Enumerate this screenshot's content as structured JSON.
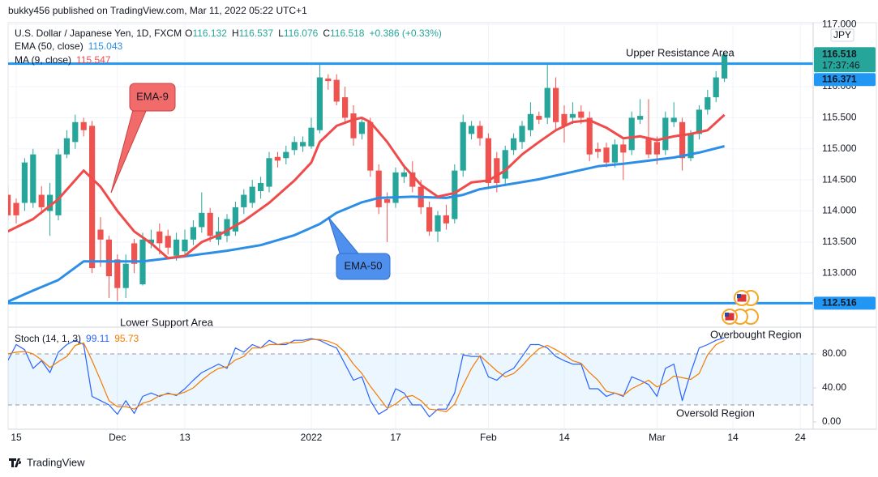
{
  "header": {
    "author_line": "bukky456 published on TradingView.com, Mar 11, 2022 05:22 UTC+1",
    "brand": "TradingView"
  },
  "chart_data": [
    {
      "type": "candlestick",
      "title": "U.S. Dollar / Japanese Yen, 1D, FXCM",
      "ohlc_prefixes": [
        "O",
        "H",
        "L",
        "C"
      ],
      "change": "+0.386 (+0.33%)",
      "currency": "JPY",
      "countdown": "17:37:46",
      "xlim": [
        0,
        95.5
      ],
      "xticks": [
        {
          "value": 1,
          "label": "15"
        },
        {
          "value": 13,
          "label": "Dec"
        },
        {
          "value": 21,
          "label": "13"
        },
        {
          "value": 36,
          "label": "2022"
        },
        {
          "value": 46,
          "label": "17"
        },
        {
          "value": 57,
          "label": "Feb"
        },
        {
          "value": 66,
          "label": "14"
        },
        {
          "value": 77,
          "label": "Mar"
        },
        {
          "value": 86,
          "label": "14"
        },
        {
          "value": 94,
          "label": "24"
        }
      ],
      "ylim": [
        112.13,
        117.03
      ],
      "yticks": [
        {
          "value": 113,
          "label": "113.000"
        },
        {
          "value": 113.5,
          "label": "113.500"
        },
        {
          "value": 114,
          "label": "114.000"
        },
        {
          "value": 114.5,
          "label": "114.500"
        },
        {
          "value": 115,
          "label": "115.000"
        },
        {
          "value": 115.5,
          "label": "115.500"
        },
        {
          "value": 116,
          "label": "116.000"
        },
        {
          "value": 117,
          "label": "117.000"
        }
      ],
      "grid": true,
      "candles": {
        "up_color": "#26a69a",
        "down_color": "#ef5350",
        "open": [
          114.26,
          114.13,
          114.13,
          114.13,
          114.26,
          114.0,
          113.93,
          114.91,
          115.11,
          115.43,
          115.37,
          113.7,
          113.54,
          113.22,
          112.76,
          113.48,
          112.82,
          113.48,
          113.67,
          113.6,
          113.28,
          113.35,
          113.54,
          113.74,
          113.97,
          113.54,
          113.6,
          113.67,
          114.06,
          114.13,
          114.32,
          114.39,
          114.87,
          114.85,
          114.98,
          115.04,
          115.04,
          115.3,
          116.13,
          116.11,
          115.83,
          115.57,
          115.24,
          115.43,
          114.65,
          114.19,
          114.13,
          114.55,
          114.62,
          114.39,
          114.06,
          113.67,
          113.93,
          113.87,
          114.65,
          115.24,
          115.37,
          115.17,
          114.85,
          114.52,
          114.98,
          115.11,
          115.3,
          115.53,
          115.5,
          115.98,
          115.56,
          115.5,
          115.6,
          115.5,
          115.0,
          115.02,
          114.78,
          115.07,
          114.98,
          115.47,
          115.17,
          115.11,
          114.98,
          115.43,
          115.43,
          114.85,
          115.24,
          115.63,
          115.83,
          116.132
        ],
        "high": [
          114.4,
          114.2,
          114.85,
          115.0,
          114.4,
          114.45,
          115.0,
          115.3,
          115.55,
          115.5,
          115.45,
          113.9,
          113.6,
          113.3,
          113.3,
          113.55,
          113.65,
          113.7,
          113.8,
          113.7,
          113.65,
          113.7,
          113.85,
          114.3,
          114.05,
          113.9,
          113.95,
          114.15,
          114.35,
          114.5,
          114.55,
          114.95,
          114.95,
          115.05,
          115.2,
          115.2,
          115.5,
          116.35,
          116.2,
          116.2,
          116.0,
          115.7,
          115.5,
          115.5,
          114.75,
          114.3,
          114.7,
          114.75,
          114.8,
          114.5,
          114.15,
          114.0,
          114.1,
          114.75,
          115.55,
          115.45,
          115.45,
          115.25,
          114.95,
          115.05,
          115.25,
          115.45,
          115.75,
          115.6,
          116.35,
          116.15,
          115.7,
          115.75,
          115.7,
          115.6,
          115.1,
          115.1,
          115.15,
          115.15,
          115.6,
          115.8,
          115.8,
          115.2,
          115.6,
          115.75,
          115.5,
          115.3,
          115.7,
          115.95,
          116.25,
          116.537
        ],
        "low": [
          113.85,
          113.8,
          114.0,
          114.05,
          113.95,
          113.6,
          113.85,
          114.85,
          115.0,
          115.2,
          113.0,
          113.1,
          112.6,
          112.55,
          112.6,
          113.0,
          112.8,
          113.4,
          113.3,
          113.3,
          113.2,
          113.25,
          113.45,
          113.65,
          113.5,
          113.45,
          113.5,
          113.6,
          113.95,
          114.05,
          114.2,
          114.3,
          114.7,
          114.75,
          114.9,
          114.95,
          115.0,
          115.25,
          115.95,
          115.7,
          115.4,
          115.05,
          115.15,
          114.55,
          113.95,
          113.5,
          114.05,
          114.45,
          114.3,
          113.95,
          113.6,
          113.5,
          113.7,
          113.8,
          114.55,
          115.15,
          115.05,
          114.35,
          114.3,
          114.4,
          114.9,
          115.0,
          115.2,
          115.4,
          115.4,
          115.3,
          115.1,
          115.4,
          115.4,
          114.8,
          114.85,
          114.7,
          114.7,
          114.5,
          114.9,
          115.4,
          114.85,
          114.75,
          114.9,
          115.35,
          114.65,
          114.8,
          115.15,
          115.55,
          115.75,
          116.076
        ],
        "close": [
          113.93,
          113.93,
          114.78,
          114.91,
          114.06,
          114.26,
          114.91,
          115.17,
          115.43,
          115.3,
          113.08,
          113.54,
          112.95,
          112.76,
          113.15,
          113.15,
          113.54,
          113.54,
          113.48,
          113.41,
          113.54,
          113.54,
          113.74,
          113.97,
          113.6,
          113.67,
          113.87,
          114.06,
          114.26,
          114.39,
          114.45,
          114.85,
          114.81,
          114.95,
          115.11,
          115.11,
          115.34,
          116.15,
          116.09,
          115.76,
          115.5,
          115.17,
          115.43,
          114.65,
          114.06,
          114.13,
          114.62,
          114.62,
          114.39,
          114.06,
          113.67,
          113.93,
          113.8,
          114.65,
          115.43,
          115.37,
          115.17,
          114.45,
          114.45,
          114.98,
          115.17,
          115.37,
          115.56,
          115.47,
          115.98,
          115.43,
          115.37,
          115.56,
          115.5,
          114.91,
          114.95,
          114.78,
          115.07,
          114.94,
          115.5,
          115.53,
          114.91,
          114.91,
          115.5,
          115.5,
          114.85,
          115.24,
          115.63,
          115.83,
          116.15,
          116.518
        ]
      },
      "series": [
        {
          "name": "EMA (50, close)",
          "color": "#2d8ee6",
          "x": [
            0,
            3,
            6,
            9,
            13,
            16,
            21,
            26,
            30,
            34,
            37,
            39,
            42,
            44,
            48,
            52,
            54,
            56,
            59,
            63,
            67,
            70,
            73,
            76,
            79,
            82,
            85
          ],
          "values": [
            112.54,
            112.72,
            112.89,
            113.19,
            113.19,
            113.19,
            113.27,
            113.36,
            113.45,
            113.61,
            113.79,
            113.97,
            114.14,
            114.21,
            114.23,
            114.21,
            114.26,
            114.35,
            114.42,
            114.51,
            114.63,
            114.72,
            114.76,
            114.81,
            114.86,
            114.94,
            115.043
          ]
        },
        {
          "name": "MA (9, close)",
          "color": "#f04b4b",
          "x": [
            0,
            3,
            6,
            9,
            11,
            13,
            15,
            17,
            19,
            21,
            23,
            25,
            28,
            31,
            34,
            36,
            37,
            39,
            41,
            42,
            43,
            45,
            47,
            49,
            51,
            53,
            55,
            57,
            59,
            61,
            63,
            65,
            67,
            69,
            71,
            73,
            75,
            77,
            79,
            81,
            83,
            85
          ],
          "values": [
            113.67,
            113.87,
            114.19,
            114.65,
            114.39,
            114.0,
            113.67,
            113.48,
            113.24,
            113.28,
            113.5,
            113.61,
            113.84,
            114.13,
            114.49,
            114.78,
            115.11,
            115.37,
            115.47,
            115.5,
            115.43,
            115.11,
            114.72,
            114.42,
            114.23,
            114.29,
            114.46,
            114.49,
            114.65,
            114.91,
            115.11,
            115.3,
            115.43,
            115.46,
            115.34,
            115.17,
            115.2,
            115.14,
            115.2,
            115.24,
            115.3,
            115.547
          ]
        }
      ],
      "hlines": [
        {
          "label": "Upper Resistance Area",
          "value": 116.371,
          "color": "#2196f3"
        },
        {
          "label": "Lower Support Area",
          "value": 112.516,
          "color": "#2196f3"
        }
      ],
      "callouts": [
        {
          "text": "EMA-9"
        },
        {
          "text": "EMA-50"
        }
      ]
    },
    {
      "type": "line",
      "title": "Stoch (14, 1, 3)",
      "ylim": [
        -8.6,
        110.5
      ],
      "yticks": [
        {
          "value": 0,
          "label": "0.00"
        },
        {
          "value": 40,
          "label": "40.00"
        },
        {
          "value": 80,
          "label": "80.00"
        }
      ],
      "bands": [
        20,
        80
      ],
      "band_color": "#2196f3",
      "series": [
        {
          "color": "#2962ff",
          "values": [
            72,
            91,
            85,
            63,
            72,
            58,
            82,
            91,
            96,
            91,
            30,
            25,
            20,
            9,
            25,
            10,
            30,
            34,
            30,
            34,
            31,
            39,
            49,
            58,
            63,
            68,
            63,
            87,
            82,
            91,
            87,
            96,
            91,
            91,
            96,
            96,
            98,
            96,
            91,
            87,
            68,
            49,
            53,
            25,
            9,
            15,
            39,
            34,
            20,
            20,
            6,
            15,
            15,
            34,
            79,
            77,
            77,
            53,
            49,
            58,
            63,
            77,
            91,
            91,
            87,
            77,
            72,
            68,
            68,
            39,
            39,
            30,
            34,
            30,
            53,
            49,
            44,
            30,
            63,
            68,
            25,
            58,
            87,
            91,
            96,
            99.11
          ]
        },
        {
          "color": "#f57c00",
          "values": [
            80,
            82,
            83,
            80,
            73,
            64,
            71,
            77,
            90,
            93,
            72,
            49,
            25,
            18,
            18,
            15,
            22,
            25,
            31,
            33,
            32,
            35,
            40,
            49,
            57,
            63,
            65,
            73,
            77,
            87,
            87,
            91,
            91,
            93,
            93,
            94,
            97,
            97,
            95,
            91,
            82,
            68,
            57,
            42,
            29,
            16,
            21,
            29,
            31,
            25,
            15,
            14,
            12,
            21,
            43,
            63,
            78,
            69,
            60,
            53,
            57,
            66,
            77,
            86,
            90,
            85,
            79,
            72,
            69,
            58,
            49,
            36,
            34,
            31,
            39,
            44,
            49,
            41,
            46,
            54,
            52,
            50,
            57,
            79,
            91,
            95.73
          ]
        }
      ],
      "annotations": [
        "Overbought Region",
        "Oversold Region"
      ]
    }
  ]
}
